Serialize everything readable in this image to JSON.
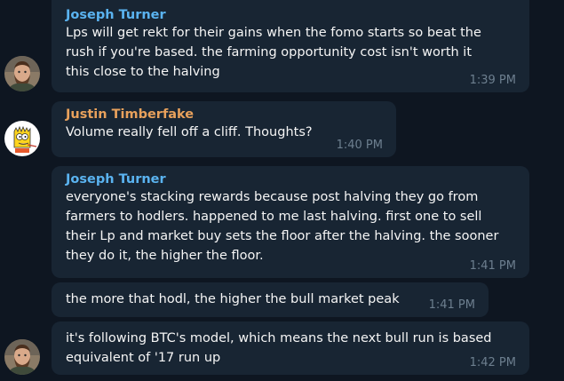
{
  "colors": {
    "background": "#0e1621",
    "bubble": "#182533",
    "sender_blue": "#5ab3f0",
    "sender_orange": "#e8a15c",
    "text": "#f5f5f5",
    "time": "#6d7f8f"
  },
  "messages": [
    {
      "sender": "Joseph Turner",
      "sender_color": "#5ab3f0",
      "lines": [
        "Lps will get rekt for their gains when the fomo starts so beat the",
        "rush if you're based. the farming opportunity cost isn't worth it",
        "this close to the halving"
      ],
      "time": "1:39 PM",
      "avatar": "bearded-man-avatar"
    },
    {
      "sender": "Justin Timberfake",
      "sender_color": "#e8a15c",
      "lines": [
        "Volume really fell off a cliff. Thoughts?"
      ],
      "time": "1:40 PM",
      "avatar": "cartoon-boy-avatar"
    },
    {
      "sender": "Joseph Turner",
      "sender_color": "#5ab3f0",
      "lines": [
        "everyone's stacking rewards because post halving they go from",
        "farmers to hodlers. happened to me last halving. first one to sell",
        "their Lp and market buy sets the floor after the halving. the sooner",
        "they do it, the higher the floor."
      ],
      "time": "1:41 PM"
    },
    {
      "lines": [
        "the more that hodl, the higher the bull market peak"
      ],
      "time": "1:41 PM"
    },
    {
      "lines": [
        "it's following BTC's model, which means the next bull run is based",
        "equivalent of '17 run up"
      ],
      "time": "1:42 PM",
      "avatar": "bearded-man-avatar"
    }
  ]
}
